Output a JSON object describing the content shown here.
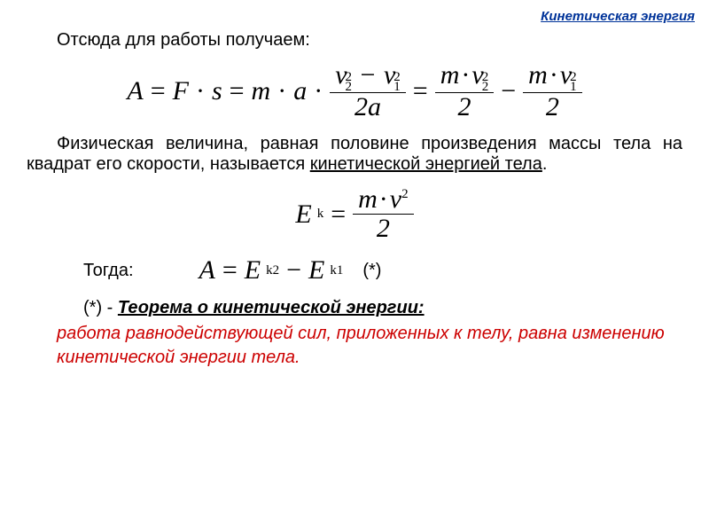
{
  "colors": {
    "link": "#003399",
    "text": "#000000",
    "emphasis": "#cc0000",
    "background": "#ffffff"
  },
  "typography": {
    "body_font": "Arial",
    "math_font": "Times New Roman",
    "body_size_pt": 20,
    "math_size_pt": 30
  },
  "header": {
    "link_text": "Кинетическая энергия"
  },
  "intro": {
    "text": "Отсюда для работы получаем:"
  },
  "eq1": {
    "A": "A",
    "eq": "=",
    "F": "F",
    "dot": "·",
    "s": "s",
    "m": "m",
    "a": "a",
    "v": "v",
    "two": "2",
    "one": "1",
    "minus": "−",
    "twoa": "2",
    "half": "2"
  },
  "definition": {
    "pre": "Физическая величина, равная половине произведения массы тела на квадрат его скорости, называется ",
    "term": "кинетической энергией тела",
    "post": "."
  },
  "eq2": {
    "E": "E",
    "k": "k",
    "eq": "=",
    "m": "m",
    "dot": "·",
    "v": "v",
    "two": "2",
    "half": "2"
  },
  "then": {
    "label": "Тогда:"
  },
  "eq3": {
    "A": "A",
    "eq": "=",
    "E": "E",
    "k2": "k2",
    "minus": "−",
    "k1": "k1",
    "star": "(*)"
  },
  "theorem": {
    "marker": "(*) - ",
    "title": "Теорема о кинетической энергии:",
    "body": "работа равнодействующей сил, приложенных к телу, равна изменению кинетической энергии тела."
  }
}
